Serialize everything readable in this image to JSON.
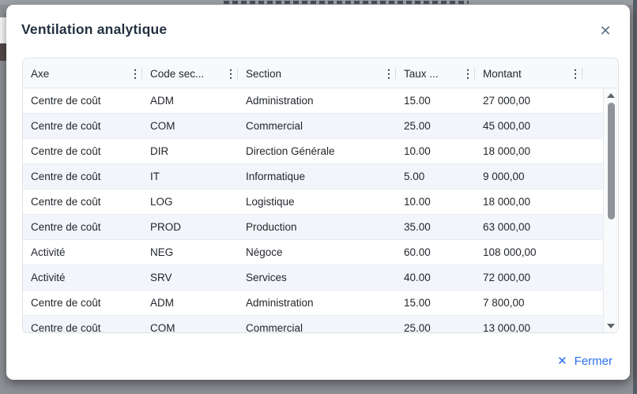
{
  "modal": {
    "title": "Ventilation analytique",
    "close_icon": "✕"
  },
  "table": {
    "columns": [
      {
        "label": "Axe"
      },
      {
        "label": "Code sec..."
      },
      {
        "label": "Section"
      },
      {
        "label": "Taux ..."
      },
      {
        "label": "Montant"
      }
    ],
    "column_menu_icon": "⋮",
    "rows": [
      {
        "axe": "Centre de coût",
        "code": "ADM",
        "section": "Administration",
        "taux": "15.00",
        "montant": "27 000,00"
      },
      {
        "axe": "Centre de coût",
        "code": "COM",
        "section": "Commercial",
        "taux": "25.00",
        "montant": "45 000,00"
      },
      {
        "axe": "Centre de coût",
        "code": "DIR",
        "section": "Direction Générale",
        "taux": "10.00",
        "montant": "18 000,00"
      },
      {
        "axe": "Centre de coût",
        "code": "IT",
        "section": "Informatique",
        "taux": "5.00",
        "montant": "9 000,00"
      },
      {
        "axe": "Centre de coût",
        "code": "LOG",
        "section": "Logistique",
        "taux": "10.00",
        "montant": "18 000,00"
      },
      {
        "axe": "Centre de coût",
        "code": "PROD",
        "section": "Production",
        "taux": "35.00",
        "montant": "63 000,00"
      },
      {
        "axe": "Activité",
        "code": "NEG",
        "section": "Négoce",
        "taux": "60.00",
        "montant": "108 000,00"
      },
      {
        "axe": "Activité",
        "code": "SRV",
        "section": "Services",
        "taux": "40.00",
        "montant": "72 000,00"
      },
      {
        "axe": "Centre de coût",
        "code": "ADM",
        "section": "Administration",
        "taux": "15.00",
        "montant": "7 800,00"
      },
      {
        "axe": "Centre de coût",
        "code": "COM",
        "section": "Commercial",
        "taux": "25.00",
        "montant": "13 000,00"
      }
    ]
  },
  "footer": {
    "close_icon": "✕",
    "close_label": "Fermer"
  },
  "colors": {
    "accent_blue": "#2b6de9",
    "title_text": "#243140",
    "header_bg": "#f8f9fa",
    "row_stripe": "#f2f5f9",
    "table_border": "#dde1e6",
    "scrollbar_thumb": "#909499",
    "backdrop": "#8e9196"
  }
}
